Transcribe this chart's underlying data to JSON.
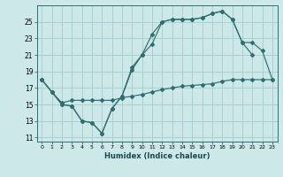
{
  "xlabel": "Humidex (Indice chaleur)",
  "xlim": [
    -0.5,
    23.5
  ],
  "ylim": [
    10.5,
    27.0
  ],
  "yticks": [
    11,
    13,
    15,
    17,
    19,
    21,
    23,
    25
  ],
  "xticks": [
    0,
    1,
    2,
    3,
    4,
    5,
    6,
    7,
    8,
    9,
    10,
    11,
    12,
    13,
    14,
    15,
    16,
    17,
    18,
    19,
    20,
    21,
    22,
    23
  ],
  "bg_color": "#cce8e8",
  "grid_color": "#aad0d0",
  "line_color": "#2d6e6e",
  "line1_x": [
    0,
    1,
    2,
    3,
    4,
    5,
    6,
    7,
    8,
    9,
    10,
    11,
    12,
    13,
    14,
    15,
    16,
    17,
    18,
    19,
    20,
    21
  ],
  "line1_y": [
    18.0,
    16.5,
    15.0,
    14.8,
    13.0,
    12.8,
    11.5,
    14.5,
    16.0,
    19.5,
    21.0,
    23.5,
    25.0,
    25.3,
    25.3,
    25.3,
    25.5,
    26.0,
    26.3,
    25.3,
    22.5,
    21.0
  ],
  "line2_x": [
    0,
    1,
    2,
    3,
    4,
    5,
    6,
    7,
    8,
    9,
    10,
    11,
    12,
    13,
    14,
    15,
    16,
    17,
    18,
    19,
    20,
    21,
    22,
    23
  ],
  "line2_y": [
    18.0,
    16.5,
    15.0,
    14.8,
    13.0,
    12.8,
    11.5,
    14.5,
    16.0,
    19.2,
    21.0,
    22.3,
    25.0,
    25.3,
    25.3,
    25.3,
    25.5,
    26.0,
    26.3,
    25.3,
    22.5,
    22.5,
    21.5,
    18.0
  ],
  "line3_x": [
    0,
    1,
    2,
    3,
    4,
    5,
    6,
    7,
    8,
    9,
    10,
    11,
    12,
    13,
    14,
    15,
    16,
    17,
    18,
    19,
    20,
    21,
    22,
    23
  ],
  "line3_y": [
    18.0,
    16.5,
    15.2,
    15.5,
    15.5,
    15.5,
    15.5,
    15.5,
    15.8,
    16.0,
    16.2,
    16.5,
    16.8,
    17.0,
    17.2,
    17.3,
    17.4,
    17.5,
    17.8,
    18.0,
    18.0,
    18.0,
    18.0,
    18.0
  ]
}
